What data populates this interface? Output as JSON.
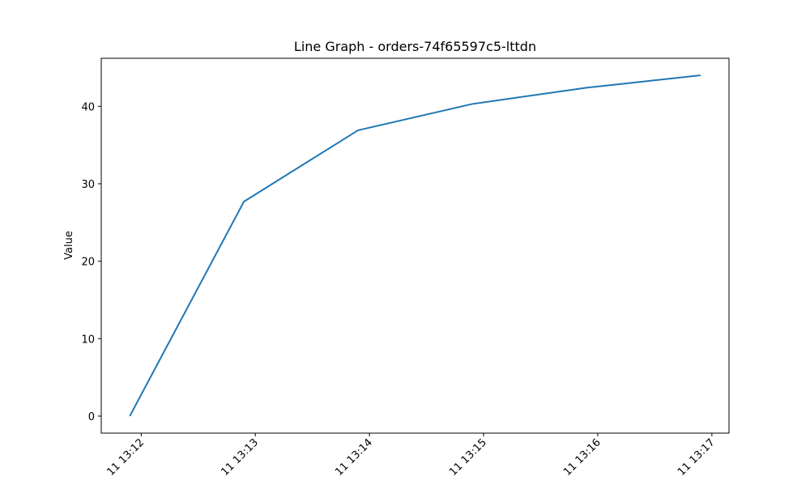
{
  "chart_data": {
    "type": "line",
    "title": "Line Graph - orders-74f65597c5-lttdn",
    "xlabel": "",
    "ylabel": "Value",
    "x": [
      "11 13:11:54",
      "11 13:12:54",
      "11 13:13:54",
      "11 13:14:54",
      "11 13:15:54",
      "11 13:16:54"
    ],
    "x_tick_labels": [
      "11 13:12",
      "11 13:13",
      "11 13:14",
      "11 13:15",
      "11 13:16",
      "11 13:17"
    ],
    "y_ticks": [
      0,
      10,
      20,
      30,
      40
    ],
    "ylim": [
      -2.2,
      46.2
    ],
    "series": [
      {
        "values": [
          0,
          27.7,
          36.9,
          40.3,
          42.4,
          44.0
        ],
        "color": "#1f77b4"
      }
    ],
    "grid": false,
    "legend": "none"
  }
}
